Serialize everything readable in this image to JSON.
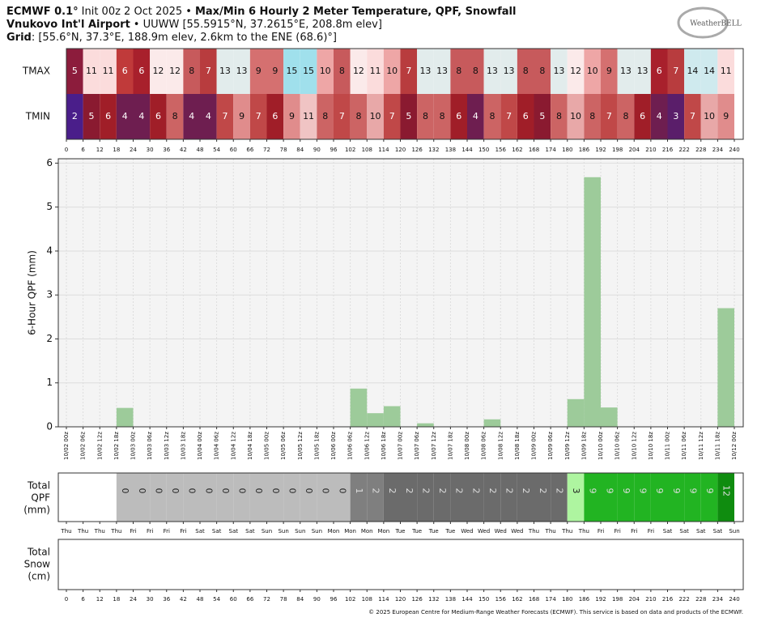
{
  "header": {
    "model": "ECMWF 0.1°",
    "init": "Init 00z 2 Oct 2025 •",
    "product": "Max/Min 6 Hourly 2 Meter Temperature, QPF, Snowfall",
    "station": "Vnukovo Int'l Airport",
    "station_info": "• UUWW [55.5915°N, 37.2615°E, 208.8m elev]",
    "grid_label": "Grid",
    "grid_info": ": [55.6°N, 37.3°E, 188.9m elev, 2.6km to the ENE (68.6)°]",
    "logo": "WeatherBELL"
  },
  "chart_data": [
    {
      "type": "heatmap",
      "xlim": [
        0,
        240
      ],
      "bins": [
        0,
        6,
        12,
        18,
        24,
        30,
        36,
        42,
        48,
        54,
        60,
        66,
        72,
        78,
        84,
        90,
        96,
        102,
        108,
        114,
        120,
        126,
        132,
        138,
        144,
        150,
        156,
        162,
        168,
        174,
        180,
        186,
        192,
        198,
        204,
        210,
        216,
        222,
        228,
        234,
        240
      ],
      "rows": [
        {
          "name": "TMAX",
          "values": [
            5,
            11,
            11,
            6,
            6,
            12,
            12,
            8,
            7,
            13,
            13,
            9,
            9,
            15,
            15,
            10,
            8,
            12,
            11,
            10,
            7,
            13,
            13,
            8,
            8,
            13,
            13,
            8,
            8,
            13,
            12,
            10,
            9,
            13,
            13,
            6,
            7,
            14,
            14,
            11
          ],
          "colors": [
            "#8c1c3c",
            "#fbdcdc",
            "#fbdcdc",
            "#c03a3a",
            "#a8202c",
            "#fbeaea",
            "#fbeaea",
            "#c75a5c",
            "#b83c3e",
            "#e2ecec",
            "#e2ecec",
            "#d57070",
            "#d57070",
            "#a0e0ec",
            "#a0e0ec",
            "#eea6a6",
            "#c75a5c",
            "#fbeaea",
            "#fbdcdc",
            "#eea6a6",
            "#b83c3e",
            "#e2ecec",
            "#e2ecec",
            "#c75a5c",
            "#c75a5c",
            "#e2ecec",
            "#e2ecec",
            "#c75a5c",
            "#c75a5c",
            "#e2ecec",
            "#fbeaea",
            "#eea6a6",
            "#d57070",
            "#e2ecec",
            "#e2ecec",
            "#a8202c",
            "#b83c3e",
            "#cfeaee",
            "#cfeaee",
            "#fbdcdc"
          ]
        },
        {
          "name": "TMIN",
          "values": [
            2,
            5,
            6,
            4,
            4,
            6,
            8,
            4,
            4,
            7,
            9,
            7,
            6,
            9,
            11,
            8,
            7,
            8,
            10,
            7,
            5,
            8,
            8,
            6,
            4,
            8,
            7,
            6,
            5,
            8,
            10,
            8,
            7,
            8,
            6,
            4,
            3,
            7,
            10,
            9
          ],
          "colors": [
            "#4a1e8a",
            "#8a1a30",
            "#a01e28",
            "#6e1e50",
            "#6e1e50",
            "#a01e28",
            "#cc6464",
            "#6e1e50",
            "#6e1e50",
            "#c04848",
            "#e08c8c",
            "#c04848",
            "#a01e28",
            "#e08c8c",
            "#f0c4c4",
            "#cc6464",
            "#c04848",
            "#cc6464",
            "#e8a8a8",
            "#c04848",
            "#8a1a30",
            "#cc6464",
            "#cc6464",
            "#a01e28",
            "#6e1e50",
            "#cc6464",
            "#c04848",
            "#a01e28",
            "#8a1a30",
            "#cc6464",
            "#e8a8a8",
            "#cc6464",
            "#c04848",
            "#cc6464",
            "#a01e28",
            "#6e1e50",
            "#5a1e6a",
            "#c04848",
            "#e8a8a8",
            "#e08c8c"
          ]
        }
      ]
    },
    {
      "type": "histogram",
      "ylabel": "6-Hour QPF (mm)",
      "color": "#9dcb9a",
      "grid": true,
      "xlim": [
        0,
        240
      ],
      "ylim": [
        0,
        6.1
      ],
      "yticks": [
        0,
        1,
        2,
        3,
        4,
        5,
        6
      ],
      "bins": [
        0,
        6,
        12,
        18,
        24,
        30,
        36,
        42,
        48,
        54,
        60,
        66,
        72,
        78,
        84,
        90,
        96,
        102,
        108,
        114,
        120,
        126,
        132,
        138,
        144,
        150,
        156,
        162,
        168,
        174,
        180,
        186,
        192,
        198,
        204,
        210,
        216,
        222,
        228,
        234,
        240
      ],
      "bin_labels": [
        "10/02 00z",
        "10/02 06z",
        "10/02 12z",
        "10/02 18z",
        "10/03 00z",
        "10/03 06z",
        "10/03 12z",
        "10/03 18z",
        "10/04 00z",
        "10/04 06z",
        "10/04 12z",
        "10/04 18z",
        "10/05 00z",
        "10/05 06z",
        "10/05 12z",
        "10/05 18z",
        "10/06 00z",
        "10/06 06z",
        "10/06 12z",
        "10/06 18z",
        "10/07 00z",
        "10/07 06z",
        "10/07 12z",
        "10/07 18z",
        "10/08 00z",
        "10/08 06z",
        "10/08 12z",
        "10/08 18z",
        "10/09 00z",
        "10/09 06z",
        "10/09 12z",
        "10/09 18z",
        "10/10 00z",
        "10/10 06z",
        "10/10 12z",
        "10/10 18z",
        "10/11 00z",
        "10/11 06z",
        "10/11 12z",
        "10/11 18z",
        "10/12 00z"
      ],
      "values": [
        0,
        0,
        0,
        0.43,
        0,
        0,
        0,
        0,
        0,
        0,
        0,
        0,
        0,
        0,
        0,
        0,
        0,
        0.87,
        0.31,
        0.47,
        0,
        0.08,
        0,
        0,
        0,
        0.17,
        0,
        0,
        0,
        0,
        0.63,
        5.68,
        0.44,
        0,
        0,
        0,
        0,
        0,
        0,
        2.7
      ]
    },
    {
      "type": "strip",
      "label": [
        "Total",
        "QPF",
        "(mm)"
      ],
      "xlim": [
        0,
        240
      ],
      "bins": [
        0,
        6,
        12,
        18,
        24,
        30,
        36,
        42,
        48,
        54,
        60,
        66,
        72,
        78,
        84,
        90,
        96,
        102,
        108,
        114,
        120,
        126,
        132,
        138,
        144,
        150,
        156,
        162,
        168,
        174,
        180,
        186,
        192,
        198,
        204,
        210,
        216,
        222,
        228,
        234,
        240
      ],
      "bin_labels": [
        "Thu",
        "Thu",
        "Thu",
        "Thu",
        "Fri",
        "Fri",
        "Fri",
        "Fri",
        "Sat",
        "Sat",
        "Sat",
        "Sat",
        "Sun",
        "Sun",
        "Sun",
        "Sun",
        "Mon",
        "Mon",
        "Mon",
        "Mon",
        "Tue",
        "Tue",
        "Tue",
        "Tue",
        "Wed",
        "Wed",
        "Wed",
        "Wed",
        "Thu",
        "Thu",
        "Thu",
        "Thu",
        "Fri",
        "Fri",
        "Fri",
        "Fri",
        "Sat",
        "Sat",
        "Sat",
        "Sat",
        "Sun"
      ],
      "values": [
        null,
        null,
        null,
        0,
        0,
        0,
        0,
        0,
        0,
        0,
        0,
        0,
        0,
        0,
        0,
        0,
        0,
        1,
        2,
        2,
        2,
        2,
        2,
        2,
        2,
        2,
        2,
        2,
        2,
        2,
        3,
        9,
        9,
        9,
        9,
        9,
        9,
        9,
        9,
        12
      ],
      "colors": [
        null,
        null,
        null,
        "#bcbcbc",
        "#bcbcbc",
        "#bcbcbc",
        "#bcbcbc",
        "#bcbcbc",
        "#bcbcbc",
        "#bcbcbc",
        "#bcbcbc",
        "#bcbcbc",
        "#bcbcbc",
        "#bcbcbc",
        "#bcbcbc",
        "#bcbcbc",
        "#bcbcbc",
        "#7f7f7f",
        "#7f7f7f",
        "#6b6b6b",
        "#6b6b6b",
        "#6b6b6b",
        "#6b6b6b",
        "#6b6b6b",
        "#6b6b6b",
        "#6b6b6b",
        "#6b6b6b",
        "#6b6b6b",
        "#6b6b6b",
        "#6b6b6b",
        "#aef5a0",
        "#22b422",
        "#22b422",
        "#22b422",
        "#22b422",
        "#22b422",
        "#22b422",
        "#22b422",
        "#22b422",
        "#0f8c0f"
      ]
    },
    {
      "type": "strip",
      "label": [
        "Total",
        "Snow",
        "(cm)"
      ],
      "xlim": [
        0,
        240
      ],
      "bins": [
        0,
        6,
        12,
        18,
        24,
        30,
        36,
        42,
        48,
        54,
        60,
        66,
        72,
        78,
        84,
        90,
        96,
        102,
        108,
        114,
        120,
        126,
        132,
        138,
        144,
        150,
        156,
        162,
        168,
        174,
        180,
        186,
        192,
        198,
        204,
        210,
        216,
        222,
        228,
        234,
        240
      ]
    }
  ],
  "footer": "© 2025 European Centre for Medium-Range Weather Forecasts (ECMWF). This service is based on data and products of the ECMWF."
}
